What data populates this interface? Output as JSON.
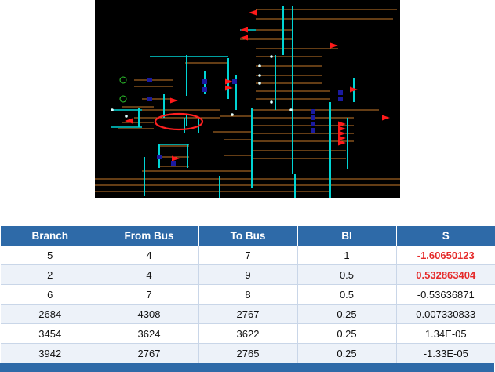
{
  "colors": {
    "diagram_bg": "#000000",
    "busbar": "#00d4d4",
    "line": "#c87a2a",
    "arrow": "#ff1a1a",
    "highlight": "#ff2020",
    "node": "#1a1aa0",
    "header_bg": "#2e6aa8",
    "row_alt": "#edf2f9",
    "emphasis": "#e52a2a"
  },
  "table": {
    "headers": [
      "Branch",
      "From Bus",
      "To Bus",
      "BI",
      "S"
    ],
    "rows": [
      {
        "branch": "5",
        "from_bus": "4",
        "to_bus": "7",
        "bi": "1",
        "s": "-1.60650123",
        "highlight": true
      },
      {
        "branch": "2",
        "from_bus": "4",
        "to_bus": "9",
        "bi": "0.5",
        "s": "0.532863404",
        "highlight": true
      },
      {
        "branch": "6",
        "from_bus": "7",
        "to_bus": "8",
        "bi": "0.5",
        "s": "-0.53636871",
        "highlight": false
      },
      {
        "branch": "2684",
        "from_bus": "4308",
        "to_bus": "2767",
        "bi": "0.25",
        "s": "0.007330833",
        "highlight": false
      },
      {
        "branch": "3454",
        "from_bus": "3624",
        "to_bus": "3622",
        "bi": "0.25",
        "s": "1.34E-05",
        "highlight": false
      },
      {
        "branch": "3942",
        "from_bus": "2767",
        "to_bus": "2765",
        "bi": "0.25",
        "s": "-1.33E-05",
        "highlight": false
      }
    ]
  }
}
